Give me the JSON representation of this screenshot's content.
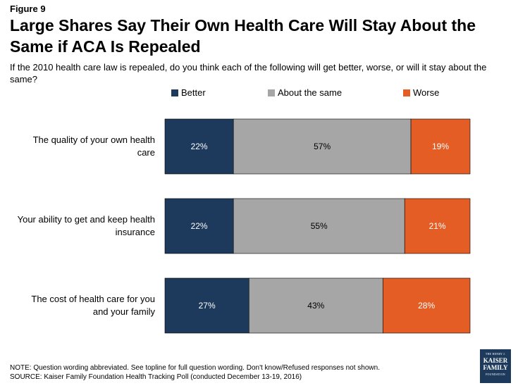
{
  "figure_label": "Figure 9",
  "note_line1": "NOTE: Question wording abbreviated. See topline for full question wording. Don't know/Refused responses not shown.",
  "note_line2": "SOURCE: Kaiser Family Foundation Health Tracking Poll (conducted December 13-19, 2016)",
  "logo": {
    "line1": "THE HENRY J.",
    "line2": "KAISER",
    "line3": "FAMILY",
    "line4": "FOUNDATION"
  },
  "chart_data": {
    "type": "bar",
    "orientation": "horizontal",
    "stacked": true,
    "title": "Large Shares Say Their Own Health Care Will Stay About the Same if ACA Is Repealed",
    "subtitle": "If the 2010 health care law is repealed, do you think each of the following will get better, worse, or will it stay about the same?",
    "categories": [
      "The quality of your own health care",
      "Your ability to get and keep health insurance",
      "The cost of health care for you and your family"
    ],
    "category_lines": [
      [
        "The quality of your own health",
        "care"
      ],
      [
        "Your ability to get and keep health",
        "insurance"
      ],
      [
        "The cost of health care for you",
        "and your family"
      ]
    ],
    "series": [
      {
        "name": "Better",
        "values": [
          22,
          22,
          27
        ],
        "color": "#1d3a5c",
        "label_color": "#ffffff"
      },
      {
        "name": "About the same",
        "values": [
          57,
          55,
          43
        ],
        "color": "#a6a6a6",
        "label_color": "#000000"
      },
      {
        "name": "Worse",
        "values": [
          19,
          21,
          28
        ],
        "color": "#e35d25",
        "label_color": "#ffffff"
      }
    ],
    "value_suffix": "%",
    "legend_position": "top",
    "xlim": [
      0,
      98
    ]
  }
}
